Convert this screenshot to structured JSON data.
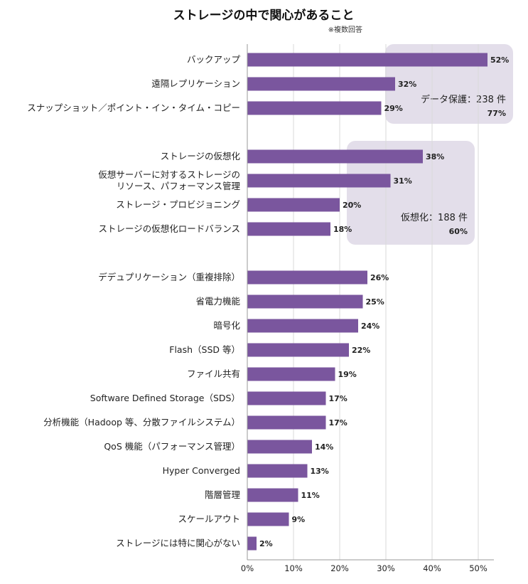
{
  "chart_data": {
    "type": "bar",
    "orientation": "horizontal",
    "title": "ストレージの中で関心があること",
    "note": "※複数回答",
    "xlim": [
      0,
      50
    ],
    "xticks": [
      "0%",
      "10%",
      "20%",
      "30%",
      "40%",
      "50%"
    ],
    "grid": true,
    "bar_color": "#7a569e",
    "annotation_color": "#e3deea",
    "groups": [
      {
        "annotation": {
          "label": "データ保護：238 件",
          "value": "77%"
        },
        "items": [
          {
            "label": "バックアップ",
            "value": 52,
            "display": "52%"
          },
          {
            "label": "遠隔レプリケーション",
            "value": 32,
            "display": "32%"
          },
          {
            "label": "スナップショット／ポイント・イン・タイム・コピー",
            "value": 29,
            "display": "29%"
          }
        ]
      },
      {
        "annotation": {
          "label": "仮想化：188 件",
          "value": "60%"
        },
        "items": [
          {
            "label": "ストレージの仮想化",
            "value": 38,
            "display": "38%"
          },
          {
            "label": [
              "仮想サーバーに対するストレージの",
              "リソース、パフォーマンス管理"
            ],
            "value": 31,
            "display": "31%"
          },
          {
            "label": "ストレージ・プロビジョニング",
            "value": 20,
            "display": "20%"
          },
          {
            "label": "ストレージの仮想化ロードバランス",
            "value": 18,
            "display": "18%"
          }
        ]
      },
      {
        "items": [
          {
            "label": "デデュプリケーション（重複排除）",
            "value": 26,
            "display": "26%"
          },
          {
            "label": "省電力機能",
            "value": 25,
            "display": "25%"
          },
          {
            "label": "暗号化",
            "value": 24,
            "display": "24%"
          },
          {
            "label": "Flash（SSD 等）",
            "value": 22,
            "display": "22%"
          },
          {
            "label": "ファイル共有",
            "value": 19,
            "display": "19%"
          },
          {
            "label": "Software Defined Storage（SDS）",
            "value": 17,
            "display": "17%"
          },
          {
            "label": "分析機能（Hadoop 等、分散ファイルシステム）",
            "value": 17,
            "display": "17%"
          },
          {
            "label": "QoS 機能（パフォーマンス管理）",
            "value": 14,
            "display": "14%"
          },
          {
            "label": "Hyper Converged",
            "value": 13,
            "display": "13%"
          },
          {
            "label": "階層管理",
            "value": 11,
            "display": "11%"
          },
          {
            "label": "スケールアウト",
            "value": 9,
            "display": "9%"
          },
          {
            "label": "ストレージには特に関心がない",
            "value": 2,
            "display": "2%"
          }
        ]
      }
    ]
  }
}
